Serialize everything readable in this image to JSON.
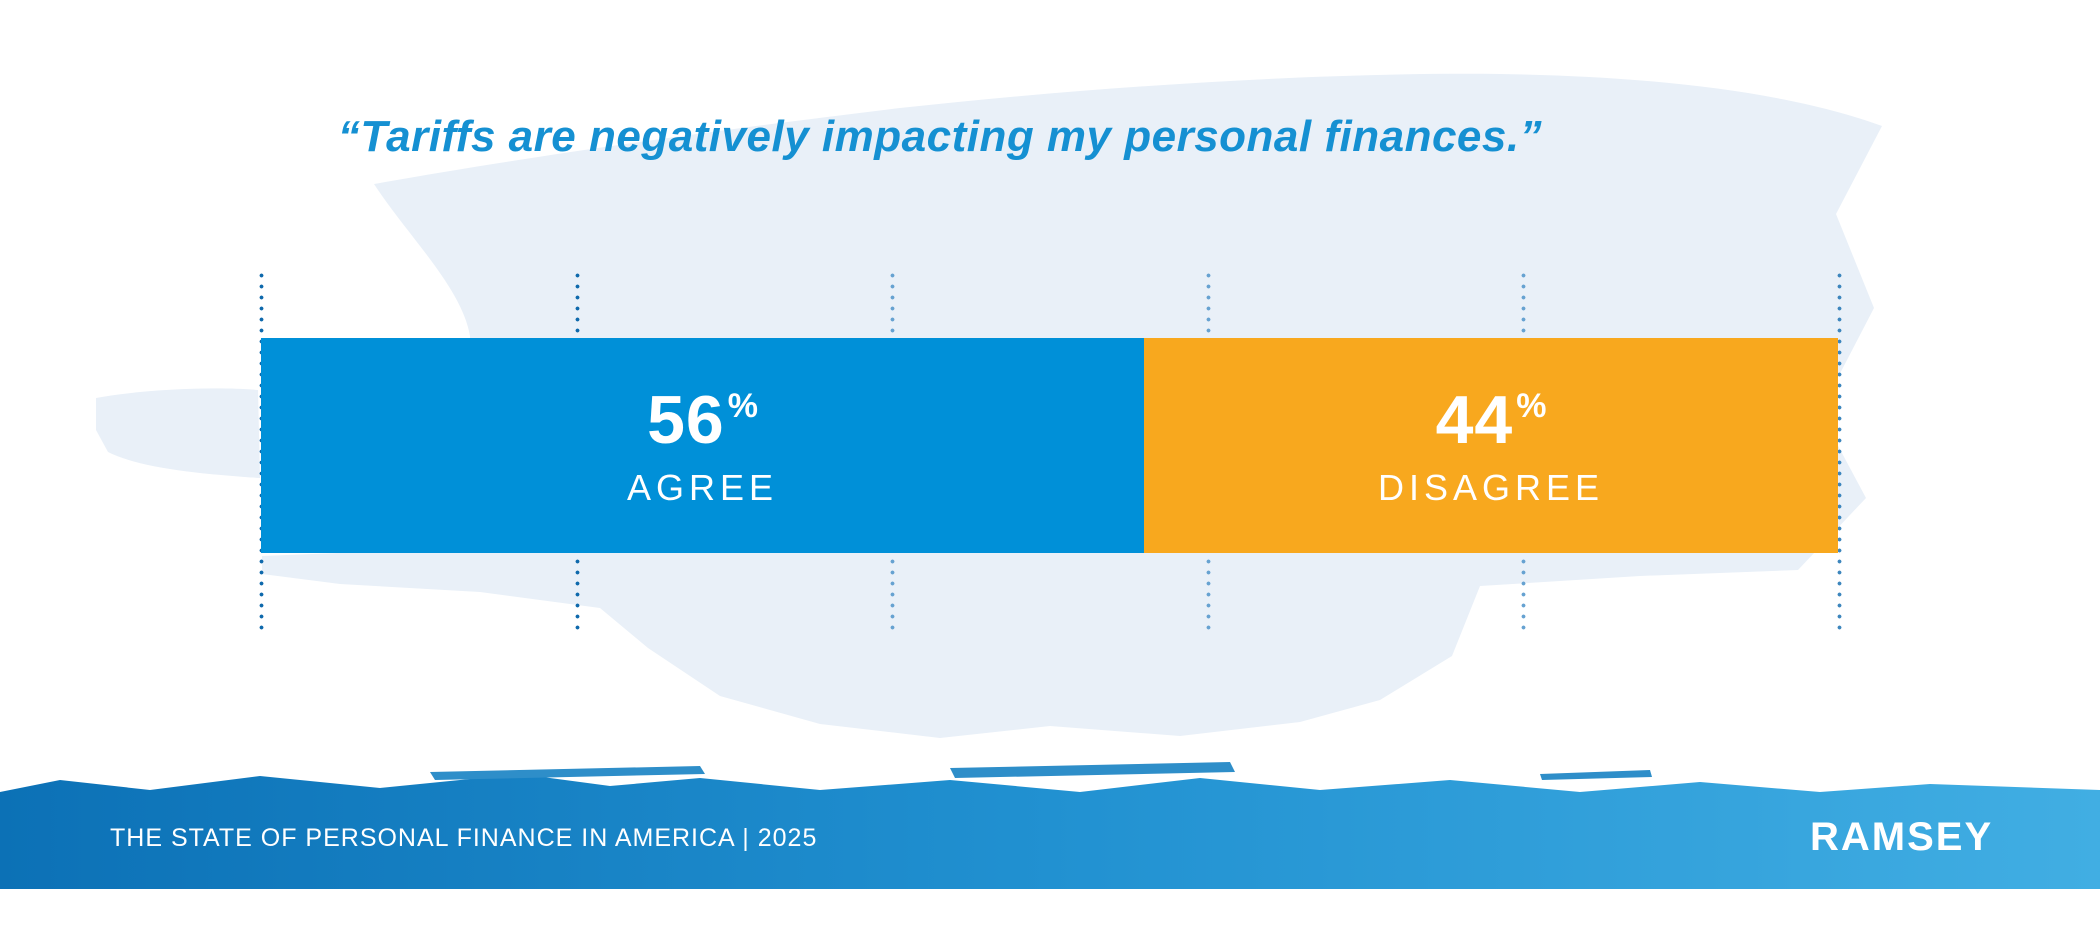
{
  "title": {
    "text": "“Tariffs are negatively impacting my personal finances.”",
    "color": "#1590d2"
  },
  "chart_data": {
    "type": "bar",
    "orientation": "horizontal",
    "stacked": true,
    "title": "“Tariffs are negatively impacting my personal finances.”",
    "categories": [
      "AGREE",
      "DISAGREE"
    ],
    "values": [
      56,
      44
    ],
    "unit": "%",
    "xlim": [
      0,
      100
    ],
    "gridline_positions_pct": [
      0,
      20,
      40,
      60,
      80,
      100
    ],
    "gridline_style": "vertical dotted lines",
    "legend": "none",
    "segments": [
      {
        "label": "AGREE",
        "value": "56",
        "unit": "%",
        "color": "#0090d8"
      },
      {
        "label": "DISAGREE",
        "value": "44",
        "unit": "%",
        "color": "#f8a81e"
      }
    ],
    "colors": {
      "agree_blue": "#0090d8",
      "disagree_orange": "#f8a81e",
      "title_text": "#1590d2",
      "background_brush": "#e9f0f8",
      "gridline_dark": "#0e69ac",
      "gridline_light": "#66a2d1",
      "bar_text": "#ffffff"
    }
  },
  "footer": {
    "label": "THE STATE OF PERSONAL FINANCE IN AMERICA | 2025",
    "brand": "RAMSEY",
    "band_gradient": [
      "#0c71b6",
      "#2191d1",
      "#41aee3"
    ]
  }
}
